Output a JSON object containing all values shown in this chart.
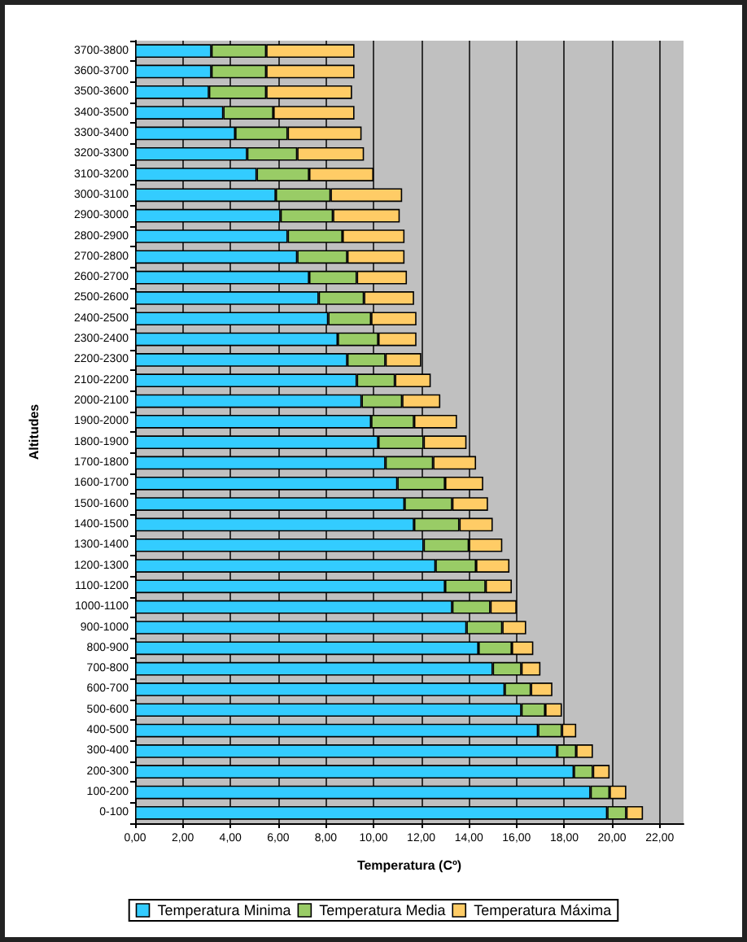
{
  "chart_data": {
    "type": "bar",
    "orientation": "horizontal",
    "stacked": true,
    "xlabel": "Temperatura (Cº)",
    "ylabel": "Altitudes",
    "categories": [
      "3700-3800",
      "3600-3700",
      "3500-3600",
      "3400-3500",
      "3300-3400",
      "3200-3300",
      "3100-3200",
      "3000-3100",
      "2900-3000",
      "2800-2900",
      "2700-2800",
      "2600-2700",
      "2500-2600",
      "2400-2500",
      "2300-2400",
      "2200-2300",
      "2100-2200",
      "2000-2100",
      "1900-2000",
      "1800-1900",
      "1700-1800",
      "1600-1700",
      "1500-1600",
      "1400-1500",
      "1300-1400",
      "1200-1300",
      "1100-1200",
      "1000-1100",
      "900-1000",
      "800-900",
      "700-800",
      "600-700",
      "500-600",
      "400-500",
      "300-400",
      "200-300",
      "100-200",
      "0-100"
    ],
    "series": [
      {
        "name": "Temperatura Minima",
        "color": "#33ccff",
        "values": [
          3.2,
          3.2,
          3.1,
          3.7,
          4.2,
          4.7,
          5.1,
          5.9,
          6.1,
          6.4,
          6.8,
          7.3,
          7.7,
          8.1,
          8.5,
          8.9,
          9.3,
          9.5,
          9.9,
          10.2,
          10.5,
          11.0,
          11.3,
          11.7,
          12.1,
          12.6,
          13.0,
          13.3,
          13.9,
          14.4,
          15.0,
          15.5,
          16.2,
          16.9,
          17.7,
          18.4,
          19.1,
          19.8
        ]
      },
      {
        "name": "Temperatura Media",
        "color": "#99cc66",
        "values": [
          2.3,
          2.3,
          2.4,
          2.1,
          2.2,
          2.1,
          2.2,
          2.3,
          2.2,
          2.3,
          2.1,
          2.0,
          1.9,
          1.8,
          1.7,
          1.6,
          1.6,
          1.7,
          1.8,
          1.9,
          2.0,
          2.0,
          2.0,
          1.9,
          1.9,
          1.7,
          1.7,
          1.6,
          1.5,
          1.4,
          1.2,
          1.1,
          1.0,
          1.0,
          0.8,
          0.8,
          0.8,
          0.8
        ]
      },
      {
        "name": "Temperatura Máxima",
        "color": "#ffcc66",
        "values": [
          3.7,
          3.7,
          3.6,
          3.4,
          3.1,
          2.8,
          2.7,
          3.0,
          2.8,
          2.6,
          2.4,
          2.1,
          2.1,
          1.9,
          1.6,
          1.5,
          1.5,
          1.6,
          1.8,
          1.8,
          1.8,
          1.6,
          1.5,
          1.4,
          1.4,
          1.4,
          1.1,
          1.1,
          1.0,
          0.9,
          0.8,
          0.9,
          0.7,
          0.6,
          0.7,
          0.7,
          0.7,
          0.7
        ]
      }
    ],
    "xlim": [
      0,
      23
    ],
    "xticks": [
      {
        "value": 0,
        "label": "0,00"
      },
      {
        "value": 2,
        "label": "2,00"
      },
      {
        "value": 4,
        "label": "4,00"
      },
      {
        "value": 6,
        "label": "6,00"
      },
      {
        "value": 8,
        "label": "8,00"
      },
      {
        "value": 10,
        "label": "10,00"
      },
      {
        "value": 12,
        "label": "12,00"
      },
      {
        "value": 14,
        "label": "14,00"
      },
      {
        "value": 16,
        "label": "16,00"
      },
      {
        "value": 18,
        "label": "18,00"
      },
      {
        "value": 20,
        "label": "20,00"
      },
      {
        "value": 22,
        "label": "22,00"
      }
    ],
    "grid": "x",
    "legend": "bottom"
  }
}
